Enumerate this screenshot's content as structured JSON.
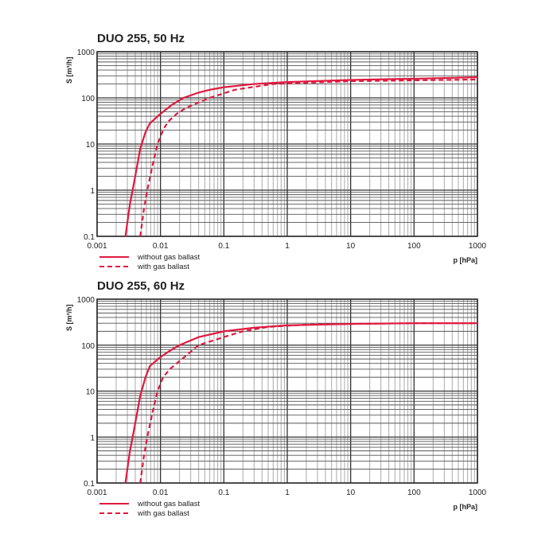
{
  "chart_data": [
    {
      "type": "line",
      "title": "DUO 255, 50 Hz",
      "xlabel": "p [hPa]",
      "ylabel": "S [m³/h]",
      "xscale": "log",
      "yscale": "log",
      "xlim": [
        0.001,
        1000
      ],
      "ylim": [
        0.1,
        1000
      ],
      "xticks": [
        "0.001",
        "0.01",
        "0.1",
        "1",
        "10",
        "100",
        "1000"
      ],
      "yticks": [
        "0.1",
        "1",
        "10",
        "100",
        "1000"
      ],
      "series": [
        {
          "name": "without gas ballast",
          "style": "solid",
          "x": [
            0.0028,
            0.0033,
            0.004,
            0.0048,
            0.0058,
            0.0068,
            0.01,
            0.015,
            0.023,
            0.04,
            0.06,
            0.1,
            0.3,
            1,
            10,
            100,
            1000
          ],
          "y": [
            0.1,
            0.5,
            2,
            8,
            18,
            28,
            45,
            70,
            100,
            130,
            150,
            170,
            200,
            220,
            245,
            260,
            280
          ]
        },
        {
          "name": "with gas ballast",
          "style": "dashed",
          "x": [
            0.0048,
            0.0055,
            0.0062,
            0.0075,
            0.009,
            0.011,
            0.013,
            0.018,
            0.025,
            0.04,
            0.06,
            0.15,
            0.6,
            10,
            100,
            1000
          ],
          "y": [
            0.1,
            0.4,
            1,
            3.5,
            10,
            20,
            30,
            45,
            60,
            80,
            100,
            150,
            200,
            230,
            240,
            250
          ]
        }
      ],
      "legend": "bottom-left"
    },
    {
      "type": "line",
      "title": "DUO 255, 60 Hz",
      "xlabel": "p [hPa]",
      "ylabel": "S [m³/h]",
      "xscale": "log",
      "yscale": "log",
      "xlim": [
        0.001,
        1000
      ],
      "ylim": [
        0.1,
        1000
      ],
      "xticks": [
        "0.001",
        "0.01",
        "0.1",
        "1",
        "10",
        "100",
        "1000"
      ],
      "yticks": [
        "0.1",
        "1",
        "10",
        "100",
        "1000"
      ],
      "series": [
        {
          "name": "without gas ballast",
          "style": "solid",
          "x": [
            0.0028,
            0.0033,
            0.004,
            0.0048,
            0.0058,
            0.0068,
            0.01,
            0.014,
            0.02,
            0.04,
            0.1,
            0.3,
            1,
            10,
            100,
            1000
          ],
          "y": [
            0.1,
            0.5,
            2,
            8,
            20,
            35,
            55,
            75,
            100,
            150,
            200,
            240,
            270,
            290,
            300,
            300
          ]
        },
        {
          "name": "with gas ballast",
          "style": "dashed",
          "x": [
            0.0048,
            0.0055,
            0.0062,
            0.0075,
            0.009,
            0.011,
            0.014,
            0.02,
            0.04,
            0.1,
            0.2,
            0.5,
            2,
            10,
            100,
            1000
          ],
          "y": [
            0.1,
            0.4,
            1,
            3.5,
            10,
            20,
            30,
            45,
            100,
            150,
            200,
            250,
            280,
            290,
            300,
            300
          ]
        }
      ],
      "legend": "bottom-left"
    }
  ],
  "colors": {
    "curve": "#e0193f",
    "grid_major": "#333333",
    "grid_minor": "#aaaaaa"
  }
}
